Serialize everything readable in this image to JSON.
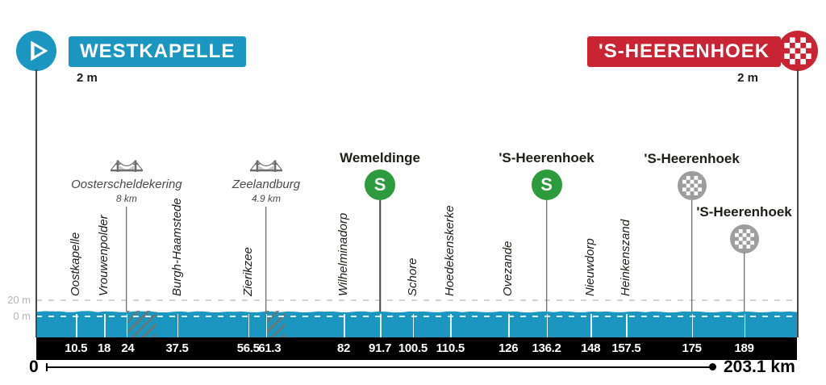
{
  "header": {
    "start": {
      "label": "WESTKAPELLE",
      "elevation": "2 m"
    },
    "finish": {
      "label": "'S-HEERENHOEK",
      "elevation": "2 m"
    }
  },
  "y_axis": {
    "top": "20 m",
    "zero": "0 m"
  },
  "scale_bar": {
    "start_label": "0",
    "end_label": "203.1 km"
  },
  "chart_data": {
    "type": "area",
    "title": "",
    "x_unit": "km",
    "y_unit": "m",
    "x_range": [
      0,
      203.1
    ],
    "y_gridlines_m": [
      20,
      0
    ],
    "start": {
      "name": "WESTKAPELLE",
      "km": 0,
      "elevation_m": 2
    },
    "finish": {
      "name": "'S-HEERENHOEK",
      "km": 203.1,
      "elevation_m": 2
    },
    "km_ticks": [
      10.5,
      18,
      24,
      37.5,
      56.5,
      61.3,
      82,
      91.7,
      100.5,
      110.5,
      126,
      136.2,
      148,
      157.5,
      175,
      189
    ],
    "towns": [
      {
        "name": "Oostkapelle",
        "km": 10.5
      },
      {
        "name": "Vrouwenpolder",
        "km": 18
      },
      {
        "name": "Burgh-Haamstede",
        "km": 37.5
      },
      {
        "name": "Zierikzee",
        "km": 56.5
      },
      {
        "name": "Wilhelminadorp",
        "km": 82
      },
      {
        "name": "Schore",
        "km": 100.5
      },
      {
        "name": "Hoedekenskerke",
        "km": 110.5
      },
      {
        "name": "Ovezande",
        "km": 126
      },
      {
        "name": "Nieuwdorp",
        "km": 148
      },
      {
        "name": "Heinkenszand",
        "km": 157.5
      }
    ],
    "bridges": [
      {
        "name": "Oosterscheldekering",
        "length_label": "8 km",
        "km": 24,
        "span_km": 8
      },
      {
        "name": "Zeelandburg",
        "length_label": "4.9 km",
        "km": 61.3,
        "span_km": 4.9
      }
    ],
    "sprints": [
      {
        "name": "Wemeldinge",
        "km": 91.7
      },
      {
        "name": "'S-Heerenhoek",
        "km": 136.2
      }
    ],
    "finish_passages": [
      {
        "name": "'S-Heerenhoek",
        "km": 175
      },
      {
        "name": "'S-Heerenhoek",
        "km": 189
      }
    ],
    "profile_m": [
      5.6,
      6.2,
      5.2,
      6.6,
      5.3,
      6.0,
      5.4,
      6.3,
      5.1,
      5.8,
      5.3,
      6.1,
      5.0,
      5.7,
      5.3,
      6.0,
      5.1,
      5.8,
      5.2,
      5.9,
      5.1,
      6.0,
      5.3,
      5.7,
      5.0,
      5.9,
      5.2,
      6.1,
      5.1,
      5.8,
      5.3,
      5.9,
      5.0,
      5.8,
      5.2,
      6.0,
      5.1,
      5.7,
      5.3,
      5.9,
      5.1,
      5.8,
      5.0,
      5.9,
      5.2,
      5.7,
      5.1,
      5.8,
      5.2,
      5.6,
      5.4
    ],
    "colors": {
      "route_fill": "#1b96c0",
      "start_accent": "#1b96c0",
      "finish_accent": "#c92433",
      "sprint_green": "#2e9a3e",
      "passage_gray": "#9d9d9d",
      "bar_black": "#000000"
    }
  }
}
